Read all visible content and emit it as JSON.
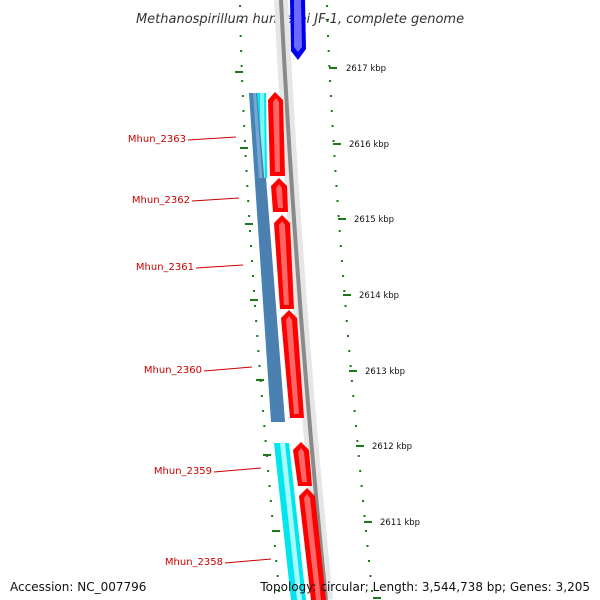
{
  "title": "Methanospirillum hungatei JF-1, complete genome",
  "scale_labels": [
    "2617 kbp",
    "2616 kbp",
    "2615 kbp",
    "2614 kbp",
    "2613 kbp",
    "2612 kbp",
    "2611 kbp"
  ],
  "genes": [
    {
      "name": "Mhun_2363",
      "strand": "reverse"
    },
    {
      "name": "Mhun_2362",
      "strand": "reverse"
    },
    {
      "name": "Mhun_2361",
      "strand": "reverse"
    },
    {
      "name": "Mhun_2360",
      "strand": "reverse"
    },
    {
      "name": "Mhun_2359",
      "strand": "reverse"
    },
    {
      "name": "Mhun_2358",
      "strand": "reverse"
    }
  ],
  "footer": {
    "accession": "Accession: NC_007796",
    "summary": "Topology: circular; Length: 3,544,738 bp; Genes: 3,205"
  },
  "colors": {
    "forward_gene": "#0000ee",
    "reverse_gene": "#ff0000",
    "backbone": "#888888",
    "tick": "#1a7a1a",
    "blast_cyan": "#00e5ee",
    "blast_steel": "#4682b4",
    "label": "#cc0000"
  }
}
